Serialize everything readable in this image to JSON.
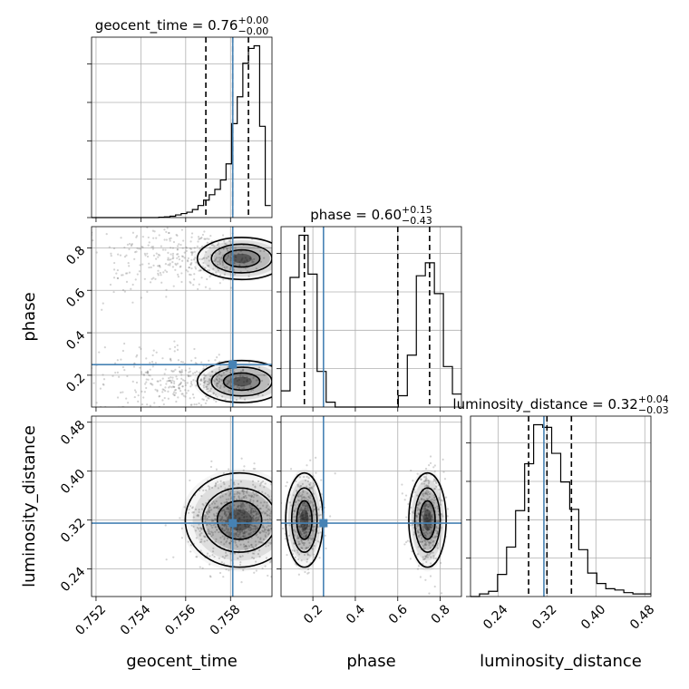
{
  "colors": {
    "truth": "#4682b4",
    "hist": "#000000",
    "grid": "#b0b0b0",
    "scatter": "#808080"
  },
  "titles": {
    "geocent_time": {
      "prefix": "geocent_time = 0.76",
      "sup": "+0.00",
      "sub": "−0.00"
    },
    "phase": {
      "prefix": "phase = 0.60",
      "sup": "+0.15",
      "sub": "−0.43"
    },
    "luminosity_distance": {
      "prefix": "luminosity_distance = 0.32",
      "sup": "+0.04",
      "sub": "−0.03"
    }
  },
  "chart_data": {
    "type": "corner",
    "parameters": [
      "geocent_time",
      "phase",
      "luminosity_distance"
    ],
    "axis_labels": {
      "geocent_time": "geocent_time",
      "phase": "phase",
      "luminosity_distance": "luminosity_distance"
    },
    "ranges": {
      "geocent_time": [
        0.7518,
        0.75985
      ],
      "phase": [
        0.05,
        0.9
      ],
      "luminosity_distance": [
        0.195,
        0.49
      ]
    },
    "ticks": {
      "geocent_time": [
        0.752,
        0.754,
        0.756,
        0.758
      ],
      "phase": [
        0.2,
        0.4,
        0.6,
        0.8
      ],
      "luminosity_distance": [
        0.24,
        0.32,
        0.4,
        0.48
      ]
    },
    "tick_labels": {
      "geocent_time": [
        "0.752",
        "0.754",
        "0.756",
        "0.758"
      ],
      "phase": [
        "0.2",
        "0.4",
        "0.6",
        "0.8"
      ],
      "luminosity_distance": [
        "0.24",
        "0.32",
        "0.40",
        "0.48"
      ]
    },
    "truths": {
      "geocent_time": 0.7581,
      "phase": 0.25,
      "luminosity_distance": 0.315
    },
    "quantiles": {
      "geocent_time": [
        0.7569,
        0.7581,
        0.7588
      ],
      "phase": [
        0.16,
        0.6,
        0.75
      ],
      "luminosity_distance": [
        0.29,
        0.32,
        0.36
      ]
    },
    "histograms": {
      "geocent_time": {
        "edges": [
          0.7518,
          0.75205,
          0.7523,
          0.75255,
          0.7528,
          0.75305,
          0.7533,
          0.75355,
          0.7538,
          0.75405,
          0.7543,
          0.75455,
          0.7548,
          0.75505,
          0.7553,
          0.75555,
          0.7558,
          0.75605,
          0.7563,
          0.75655,
          0.7568,
          0.75705,
          0.7573,
          0.75755,
          0.7578,
          0.75805,
          0.7583,
          0.75855,
          0.7588,
          0.75905,
          0.7593,
          0.75955,
          0.7598
        ],
        "counts": [
          0,
          0,
          0,
          0,
          0,
          0,
          0,
          0,
          0,
          0,
          0,
          0,
          0.3,
          0.5,
          1,
          2,
          3,
          4,
          6,
          9,
          13,
          17,
          21,
          28,
          40,
          70,
          90,
          115,
          126,
          128,
          68,
          9
        ]
      },
      "phase": {
        "edges": [
          0.05,
          0.0925,
          0.135,
          0.1775,
          0.22,
          0.2625,
          0.305,
          0.3475,
          0.39,
          0.4325,
          0.475,
          0.5175,
          0.56,
          0.6025,
          0.645,
          0.6875,
          0.73,
          0.7725,
          0.815,
          0.8575,
          0.9
        ],
        "counts": [
          10,
          80,
          106,
          82,
          22,
          3,
          0,
          0,
          0,
          0,
          0,
          0,
          0,
          7,
          32,
          81,
          89,
          70,
          25,
          8
        ]
      },
      "luminosity_distance": {
        "edges": [
          0.195,
          0.2097,
          0.2245,
          0.2392,
          0.254,
          0.2687,
          0.2835,
          0.2982,
          0.313,
          0.3277,
          0.3425,
          0.3572,
          0.372,
          0.3867,
          0.4015,
          0.4162,
          0.431,
          0.4457,
          0.4605,
          0.4752,
          0.49
        ],
        "counts": [
          0,
          2,
          4,
          17,
          38,
          66,
          102,
          132,
          130,
          110,
          88,
          67,
          36,
          18,
          10,
          6,
          5,
          3,
          2,
          2
        ]
      }
    },
    "pairs": [
      {
        "x": "geocent_time",
        "y": "phase",
        "modes": [
          {
            "mx": 0.7585,
            "my": 0.75,
            "sx": 0.0009,
            "sy": 0.045,
            "spreadX": 0.003,
            "w": 0.5
          },
          {
            "mx": 0.7585,
            "my": 0.17,
            "sx": 0.0009,
            "sy": 0.045,
            "spreadX": 0.003,
            "w": 0.5
          }
        ]
      },
      {
        "x": "geocent_time",
        "y": "luminosity_distance",
        "modes": [
          {
            "mx": 0.7584,
            "my": 0.32,
            "sx": 0.0011,
            "sy": 0.035,
            "spreadX": 0.0,
            "w": 1.0
          }
        ]
      },
      {
        "x": "phase",
        "y": "luminosity_distance",
        "modes": [
          {
            "mx": 0.16,
            "my": 0.32,
            "sx": 0.04,
            "sy": 0.035,
            "spreadX": 0.0,
            "w": 0.5
          },
          {
            "mx": 0.74,
            "my": 0.32,
            "sx": 0.04,
            "sy": 0.035,
            "spreadX": 0.0,
            "w": 0.5
          }
        ]
      }
    ],
    "grid": true
  }
}
